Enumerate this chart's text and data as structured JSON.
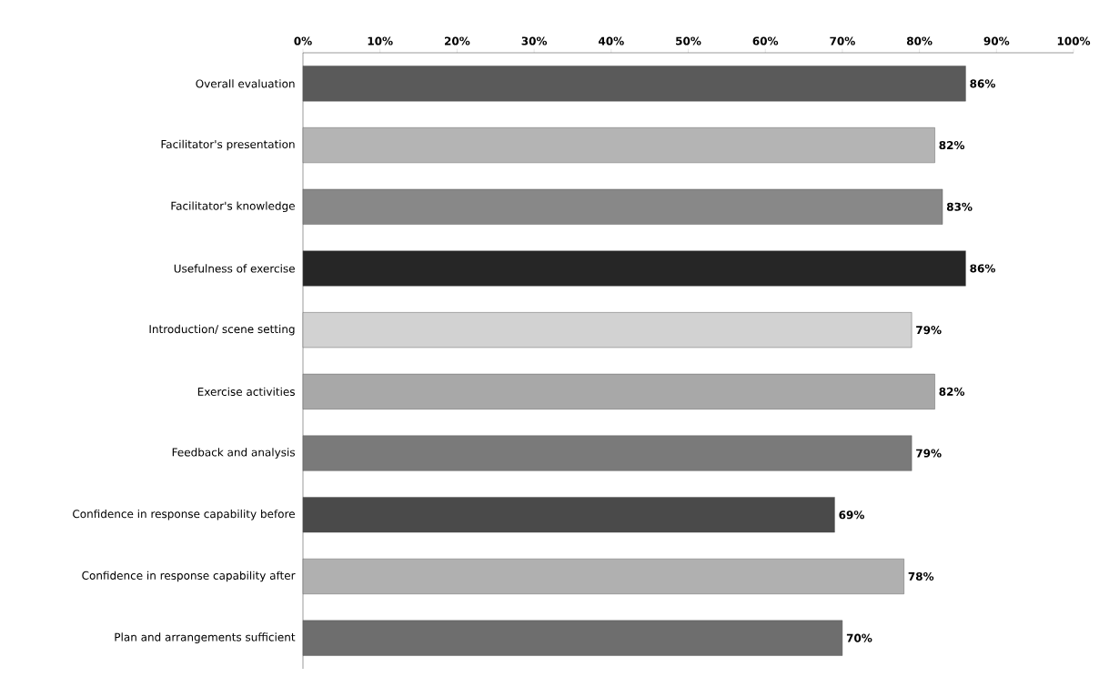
{
  "chart_data": {
    "type": "bar",
    "orientation": "horizontal",
    "categories": [
      "Overall evaluation",
      "Facilitator's presentation",
      "Facilitator's knowledge",
      "Usefulness of exercise",
      "Introduction/ scene setting",
      "Exercise activities",
      "Feedback and analysis",
      "Confidence in response capability before",
      "Confidence in response capability after",
      "Plan and arrangements sufficient"
    ],
    "values": [
      86,
      82,
      83,
      86,
      79,
      82,
      79,
      69,
      78,
      70
    ],
    "value_labels": [
      "86%",
      "82%",
      "83%",
      "86%",
      "79%",
      "82%",
      "79%",
      "69%",
      "78%",
      "70%"
    ],
    "colors": [
      "#5a5a5a",
      "#b4b4b4",
      "#888888",
      "#262626",
      "#d2d2d2",
      "#a8a8a8",
      "#7a7a7a",
      "#4a4a4a",
      "#b0b0b0",
      "#6e6e6e"
    ],
    "xlim": [
      0,
      100
    ],
    "xticks": [
      {
        "value": 0,
        "label": "0%"
      },
      {
        "value": 10,
        "label": "10%"
      },
      {
        "value": 20,
        "label": "20%"
      },
      {
        "value": 30,
        "label": "30%"
      },
      {
        "value": 40,
        "label": "40%"
      },
      {
        "value": 50,
        "label": "50%"
      },
      {
        "value": 60,
        "label": "60%"
      },
      {
        "value": 70,
        "label": "70%"
      },
      {
        "value": 80,
        "label": "80%"
      },
      {
        "value": 90,
        "label": "90%"
      },
      {
        "value": 100,
        "label": "100%"
      }
    ],
    "grid": false
  }
}
